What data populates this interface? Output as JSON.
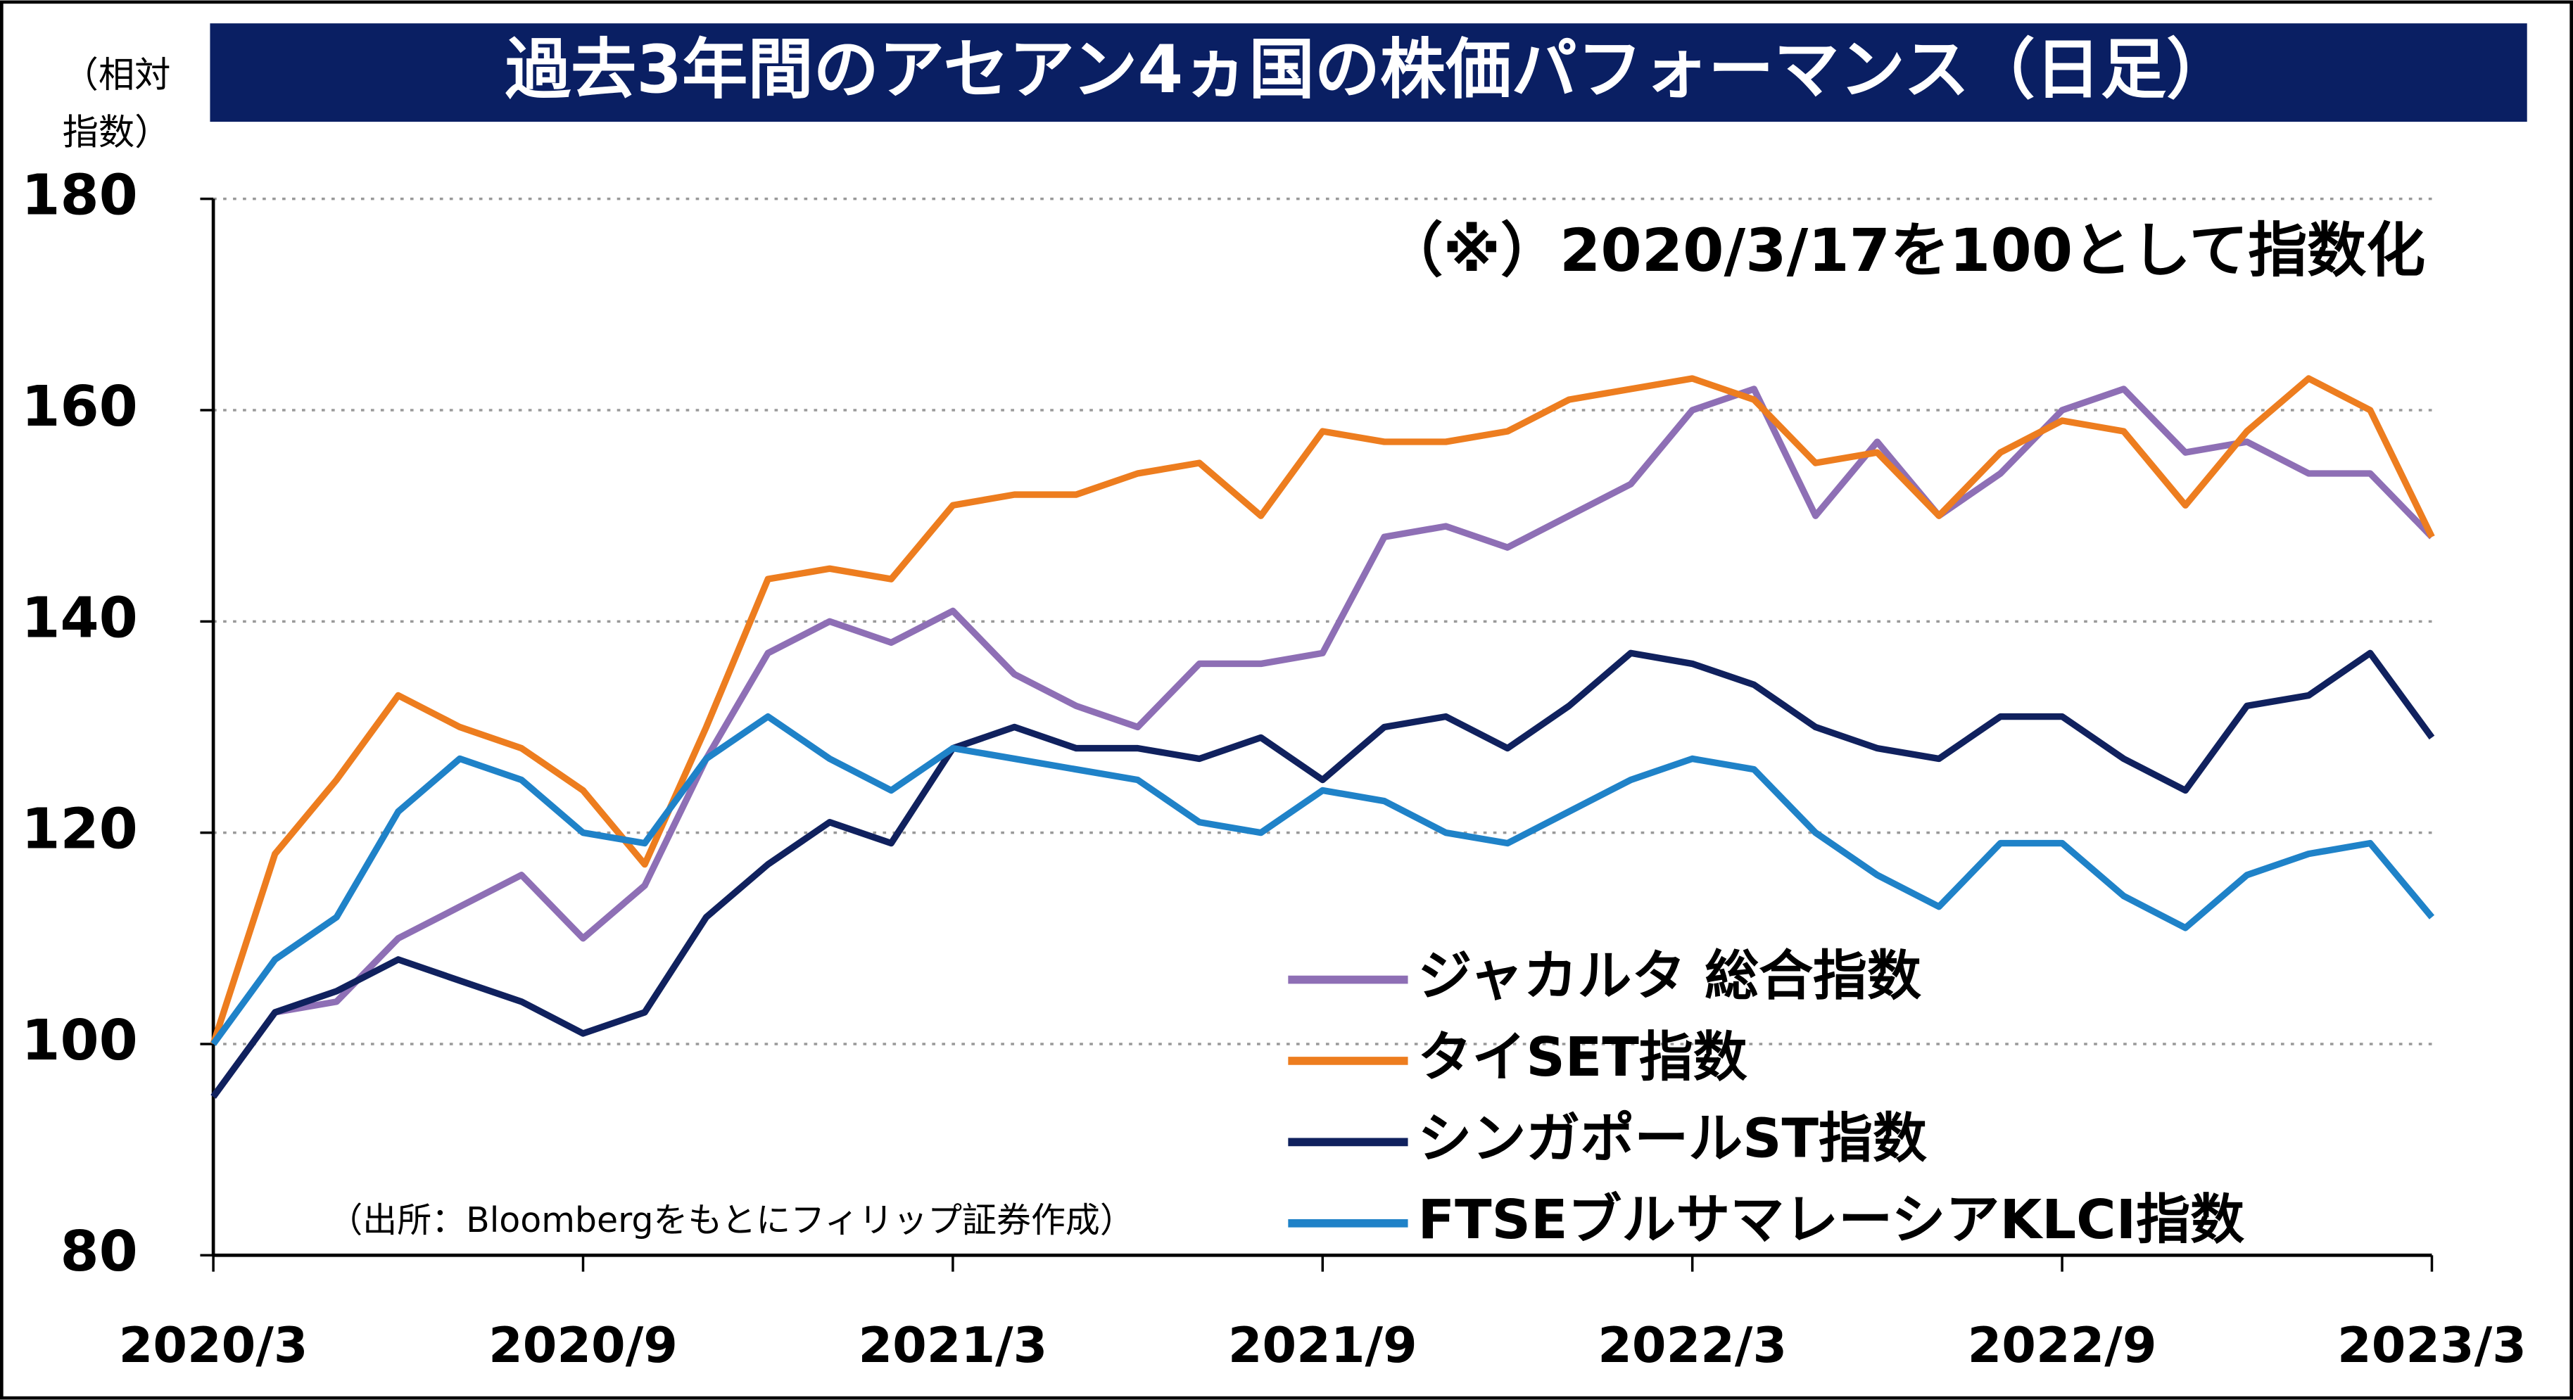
{
  "chart_data": {
    "type": "line",
    "title": "過去3年間のアセアン4ヵ国の株価パフォーマンス（日足）",
    "y_label": [
      "（相対",
      "指数）"
    ],
    "annotation": "（※）2020/3/17を100として指数化",
    "source": "（出所：Bloombergをもとにフィリップ証券作成）",
    "x": [
      "2020/3",
      "2020/4",
      "2020/5",
      "2020/6",
      "2020/7",
      "2020/8",
      "2020/9",
      "2020/10",
      "2020/11",
      "2020/12",
      "2021/1",
      "2021/2",
      "2021/3",
      "2021/4",
      "2021/5",
      "2021/6",
      "2021/7",
      "2021/8",
      "2021/9",
      "2021/10",
      "2021/11",
      "2021/12",
      "2022/1",
      "2022/2",
      "2022/3",
      "2022/4",
      "2022/5",
      "2022/6",
      "2022/7",
      "2022/8",
      "2022/9",
      "2022/10",
      "2022/11",
      "2022/12",
      "2023/1",
      "2023/2",
      "2023/3"
    ],
    "ylim": [
      80,
      180
    ],
    "yticks": [
      80,
      100,
      120,
      140,
      160,
      180
    ],
    "grid": true,
    "series": [
      {
        "name": "ジャカルタ 総合指数",
        "color": "#8e6fb5",
        "values": [
          95,
          103,
          104,
          110,
          113,
          116,
          110,
          115,
          127,
          137,
          140,
          138,
          141,
          135,
          132,
          130,
          136,
          136,
          137,
          148,
          149,
          147,
          150,
          153,
          160,
          162,
          150,
          157,
          150,
          154,
          160,
          162,
          156,
          157,
          154,
          154,
          148
        ]
      },
      {
        "name": "タイSET指数",
        "color": "#ed7d1f",
        "values": [
          100,
          118,
          125,
          133,
          130,
          128,
          124,
          117,
          130,
          144,
          145,
          144,
          151,
          152,
          152,
          154,
          155,
          150,
          158,
          157,
          157,
          158,
          161,
          162,
          163,
          161,
          155,
          156,
          150,
          156,
          159,
          158,
          151,
          158,
          163,
          160,
          148
        ]
      },
      {
        "name": "シンガポールST指数",
        "color": "#10215e",
        "values": [
          95,
          103,
          105,
          108,
          106,
          104,
          101,
          103,
          112,
          117,
          121,
          119,
          128,
          130,
          128,
          128,
          127,
          129,
          125,
          130,
          131,
          128,
          132,
          137,
          136,
          134,
          130,
          128,
          127,
          131,
          131,
          127,
          124,
          132,
          133,
          137,
          129
        ]
      },
      {
        "name": "FTSEブルサマレーシアKLCI指数",
        "color": "#1f82c8",
        "values": [
          100,
          108,
          112,
          122,
          127,
          125,
          120,
          119,
          127,
          131,
          127,
          124,
          128,
          127,
          126,
          125,
          121,
          120,
          124,
          123,
          120,
          119,
          122,
          125,
          127,
          126,
          120,
          116,
          113,
          119,
          119,
          114,
          111,
          116,
          118,
          119,
          112
        ]
      }
    ]
  }
}
